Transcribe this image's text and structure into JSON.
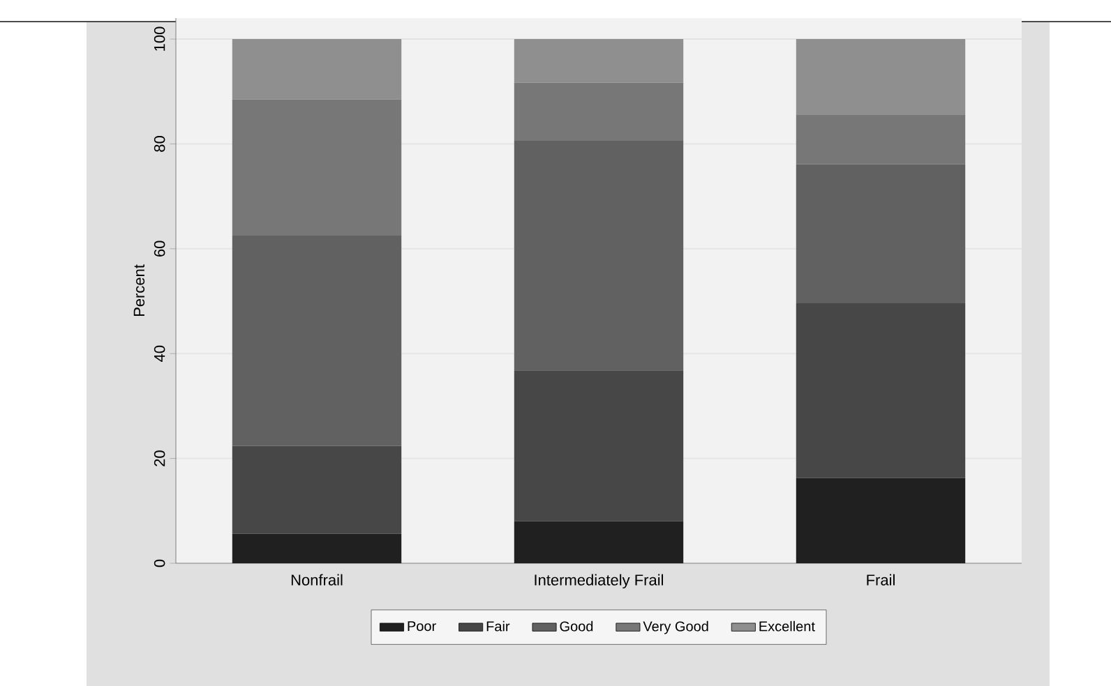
{
  "chart_data": {
    "type": "bar",
    "stacked": true,
    "ylabel": "Percent",
    "categories": [
      "Nonfrail",
      "Intermediately Frail",
      "Frail"
    ],
    "series": [
      {
        "name": "Poor",
        "color": "#202020",
        "values": [
          5.6,
          8.0,
          16.3
        ]
      },
      {
        "name": "Fair",
        "color": "#474747",
        "values": [
          16.8,
          28.8,
          33.3
        ]
      },
      {
        "name": "Good",
        "color": "#616161",
        "values": [
          40.1,
          43.8,
          26.5
        ]
      },
      {
        "name": "Very Good",
        "color": "#777777",
        "values": [
          26.0,
          11.1,
          9.4
        ]
      },
      {
        "name": "Excellent",
        "color": "#8f8f8f",
        "values": [
          11.5,
          8.3,
          14.5
        ]
      }
    ],
    "ylim": [
      0,
      104
    ],
    "yticks": [
      0,
      20,
      40,
      60,
      80,
      100
    ],
    "grid": "y",
    "legend": "bottom"
  }
}
